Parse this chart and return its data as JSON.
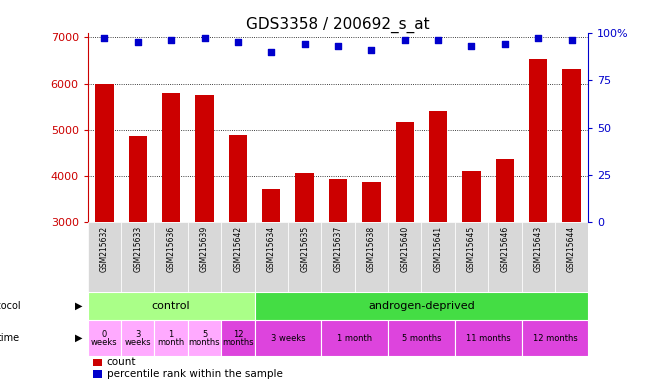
{
  "title": "GDS3358 / 200692_s_at",
  "samples": [
    "GSM215632",
    "GSM215633",
    "GSM215636",
    "GSM215639",
    "GSM215642",
    "GSM215634",
    "GSM215635",
    "GSM215637",
    "GSM215638",
    "GSM215640",
    "GSM215641",
    "GSM215645",
    "GSM215646",
    "GSM215643",
    "GSM215644"
  ],
  "counts": [
    5990,
    4870,
    5790,
    5760,
    4880,
    3720,
    4060,
    3930,
    3870,
    5170,
    5400,
    4100,
    4360,
    6530,
    6310
  ],
  "percentiles": [
    97,
    95,
    96,
    97,
    95,
    90,
    94,
    93,
    91,
    96,
    96,
    93,
    94,
    97,
    96
  ],
  "bar_color": "#cc0000",
  "dot_color": "#0000cc",
  "ylim": [
    3000,
    7100
  ],
  "yticks": [
    3000,
    4000,
    5000,
    6000,
    7000
  ],
  "y2ticks": [
    0,
    25,
    50,
    75,
    100
  ],
  "y2lim": [
    0,
    100
  ],
  "grid_values": [
    4000,
    5000,
    6000,
    7000
  ],
  "bar_width": 0.55,
  "ylabel_color": "#cc0000",
  "y2label_color": "#0000cc",
  "background_color": "#ffffff",
  "sample_area_color": "#d8d8d8",
  "protocol_light_green": "#aaff88",
  "protocol_bright_green": "#44dd44",
  "time_light_pink": "#ffaaff",
  "time_bright_magenta": "#dd44dd",
  "protocol_groups": [
    {
      "label": "control",
      "start": 0,
      "end": 5,
      "color": "#aaff88"
    },
    {
      "label": "androgen-deprived",
      "start": 5,
      "end": 15,
      "color": "#44dd44"
    }
  ],
  "time_groups": [
    {
      "label": "0\nweeks",
      "start": 0,
      "end": 1,
      "color": "#ffaaff"
    },
    {
      "label": "3\nweeks",
      "start": 1,
      "end": 2,
      "color": "#ffaaff"
    },
    {
      "label": "1\nmonth",
      "start": 2,
      "end": 3,
      "color": "#ffaaff"
    },
    {
      "label": "5\nmonths",
      "start": 3,
      "end": 4,
      "color": "#ffaaff"
    },
    {
      "label": "12\nmonths",
      "start": 4,
      "end": 5,
      "color": "#dd44dd"
    },
    {
      "label": "3 weeks",
      "start": 5,
      "end": 7,
      "color": "#dd44dd"
    },
    {
      "label": "1 month",
      "start": 7,
      "end": 9,
      "color": "#dd44dd"
    },
    {
      "label": "5 months",
      "start": 9,
      "end": 11,
      "color": "#dd44dd"
    },
    {
      "label": "11 months",
      "start": 11,
      "end": 13,
      "color": "#dd44dd"
    },
    {
      "label": "12 months",
      "start": 13,
      "end": 15,
      "color": "#dd44dd"
    }
  ]
}
